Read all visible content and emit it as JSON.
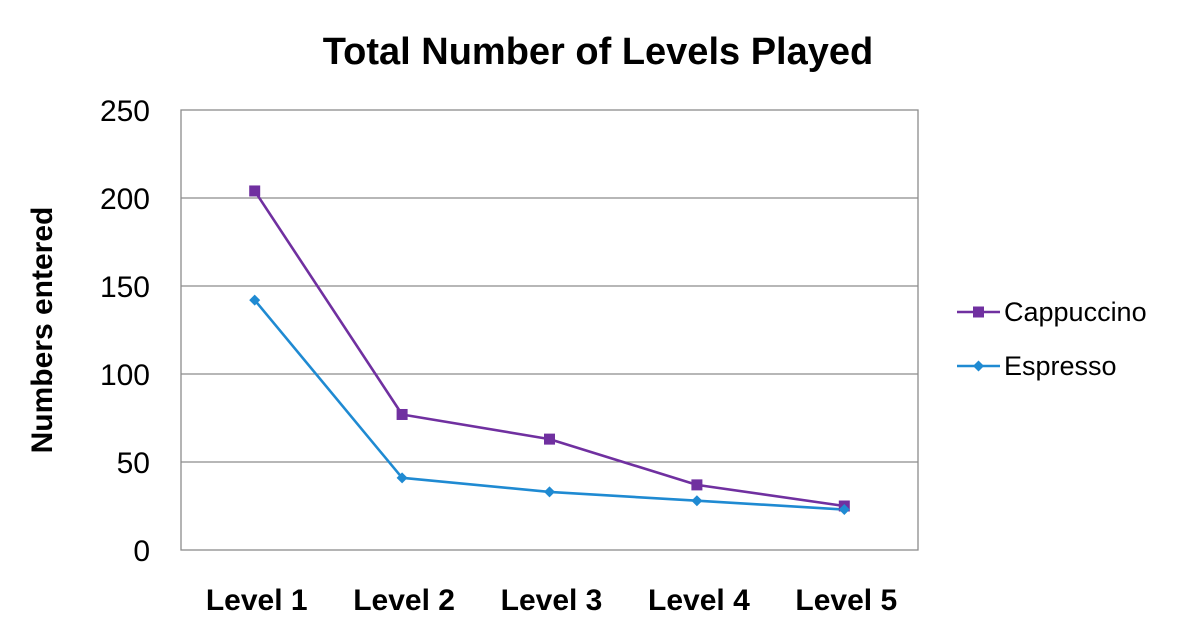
{
  "chart_data": {
    "type": "line",
    "title": "Total Number of Levels Played",
    "xlabel": "",
    "ylabel": "Numbers entered",
    "categories": [
      "Level 1",
      "Level 2",
      "Level 3",
      "Level 4",
      "Level 5"
    ],
    "ylim": [
      0,
      250
    ],
    "yticks": [
      "0",
      "50",
      "100",
      "150",
      "200",
      "250"
    ],
    "grid": true,
    "legend_position": "right",
    "series": [
      {
        "name": "Cappuccino",
        "values": [
          204,
          77,
          63,
          37,
          25
        ],
        "color": "#7030a0",
        "marker": "square"
      },
      {
        "name": "Espresso",
        "values": [
          142,
          41,
          33,
          28,
          23
        ],
        "color": "#1f8ad2",
        "marker": "diamond"
      }
    ]
  }
}
